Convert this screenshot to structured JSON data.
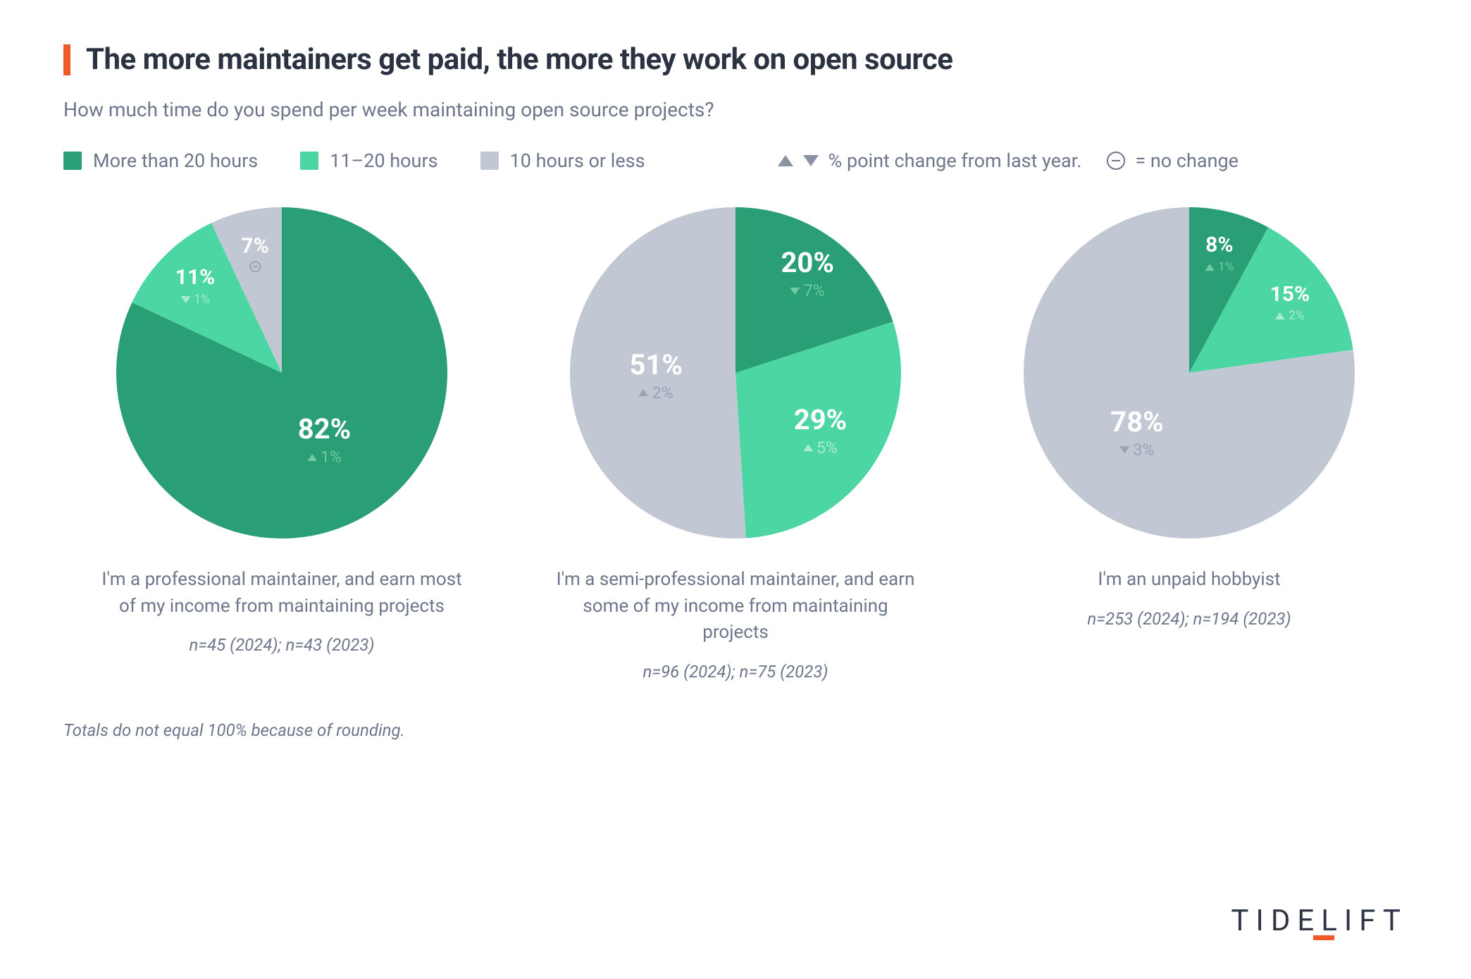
{
  "title": "The more maintainers get paid, the more they work on open source",
  "subtitle": "How much time do you spend per week maintaining open source projects?",
  "accent_bar_color": "#f05a28",
  "legend": {
    "items": [
      {
        "label": "More than 20 hours",
        "color": "#2a9e74"
      },
      {
        "label": "11–20 hours",
        "color": "#4cd6a3"
      },
      {
        "label": "10 hours or less",
        "color": "#c1c8d4"
      }
    ],
    "change_text": "% point change from last year.",
    "nochange_text": "= no change",
    "indicator_color": "#8b92a3"
  },
  "series_colors": {
    "more20": "#2a9e74",
    "mid": "#4cd6a3",
    "low": "#c1c8d4"
  },
  "delta_label_colors": {
    "on_more20": "#6fcaa6",
    "on_mid": "#a9ead2",
    "on_low": "#9aa2b3"
  },
  "pie": {
    "radius": 235,
    "start_angle_deg": 0,
    "label_font_big": 40,
    "label_font_small": 30
  },
  "panels": [
    {
      "slices": [
        {
          "key": "more20",
          "value": 82,
          "label": "82%",
          "delta": {
            "dir": "up",
            "text": "1%"
          },
          "big": true
        },
        {
          "key": "mid",
          "value": 11,
          "label": "11%",
          "delta": {
            "dir": "down",
            "text": "1%"
          },
          "big": false
        },
        {
          "key": "low",
          "value": 7,
          "label": "7%",
          "delta": {
            "dir": "none",
            "text": ""
          },
          "big": false
        }
      ],
      "caption": "I'm a professional maintainer, and earn most of my income from maintaining projects",
      "n": "n=45 (2024); n=43 (2023)"
    },
    {
      "slices": [
        {
          "key": "more20",
          "value": 20,
          "label": "20%",
          "delta": {
            "dir": "down",
            "text": "7%"
          },
          "big": true
        },
        {
          "key": "mid",
          "value": 29,
          "label": "29%",
          "delta": {
            "dir": "up",
            "text": "5%"
          },
          "big": true
        },
        {
          "key": "low",
          "value": 51,
          "label": "51%",
          "delta": {
            "dir": "up",
            "text": "2%"
          },
          "big": true
        }
      ],
      "caption": "I'm a semi-professional maintainer, and earn some of my income from maintaining projects",
      "n": "n=96 (2024); n=75 (2023)"
    },
    {
      "slices": [
        {
          "key": "more20",
          "value": 8,
          "label": "8%",
          "delta": {
            "dir": "up",
            "text": "1%"
          },
          "big": false
        },
        {
          "key": "mid",
          "value": 15,
          "label": "15%",
          "delta": {
            "dir": "up",
            "text": "2%"
          },
          "big": false
        },
        {
          "key": "low",
          "value": 78,
          "label": "78%",
          "delta": {
            "dir": "down",
            "text": "3%"
          },
          "big": true
        }
      ],
      "caption": "I'm an unpaid hobbyist",
      "n": "n=253 (2024); n=194 (2023)"
    }
  ],
  "footnote": "Totals do not equal 100% because of rounding.",
  "brand": "TIDELIFT"
}
